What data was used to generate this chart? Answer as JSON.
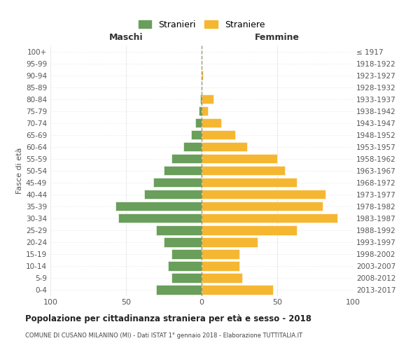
{
  "age_groups": [
    "100+",
    "95-99",
    "90-94",
    "85-89",
    "80-84",
    "75-79",
    "70-74",
    "65-69",
    "60-64",
    "55-59",
    "50-54",
    "45-49",
    "40-44",
    "35-39",
    "30-34",
    "25-29",
    "20-24",
    "15-19",
    "10-14",
    "5-9",
    "0-4"
  ],
  "birth_years": [
    "≤ 1917",
    "1918-1922",
    "1923-1927",
    "1928-1932",
    "1933-1937",
    "1938-1942",
    "1943-1947",
    "1948-1952",
    "1953-1957",
    "1958-1962",
    "1963-1967",
    "1968-1972",
    "1973-1977",
    "1978-1982",
    "1983-1987",
    "1988-1992",
    "1993-1997",
    "1998-2002",
    "2003-2007",
    "2008-2012",
    "2013-2017"
  ],
  "males": [
    0,
    0,
    0,
    0,
    1,
    2,
    4,
    7,
    12,
    20,
    25,
    32,
    38,
    57,
    55,
    30,
    25,
    20,
    22,
    20,
    30
  ],
  "females": [
    0,
    0,
    1,
    0,
    8,
    4,
    13,
    22,
    30,
    50,
    55,
    63,
    82,
    80,
    90,
    63,
    37,
    25,
    25,
    27,
    47
  ],
  "male_color": "#6a9e5b",
  "female_color": "#f5b731",
  "grid_color": "#cccccc",
  "title": "Popolazione per cittadinanza straniera per età e sesso - 2018",
  "subtitle": "COMUNE DI CUSANO MILANINO (MI) - Dati ISTAT 1° gennaio 2018 - Elaborazione TUTTITALIA.IT",
  "label_maschi": "Maschi",
  "label_femmine": "Femmine",
  "ylabel_left": "Fasce di età",
  "legend_males": "Stranieri",
  "legend_females": "Straniere",
  "xlim": 100,
  "dashed_line_color": "#999977"
}
